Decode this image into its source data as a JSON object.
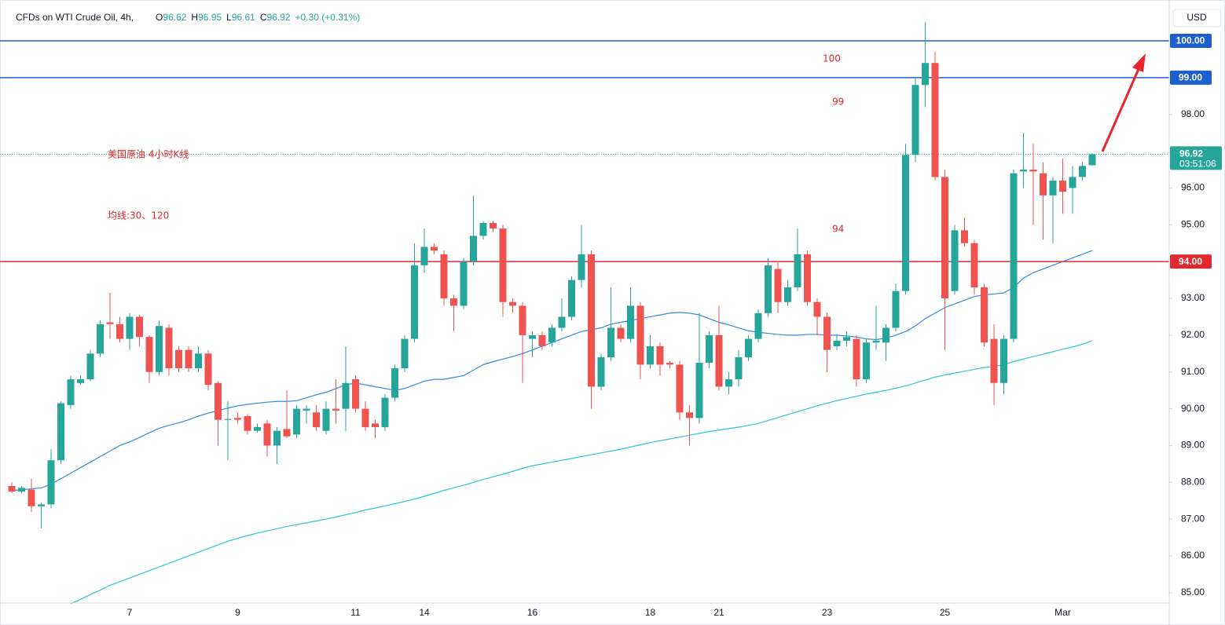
{
  "chart_data": {
    "type": "candlestick",
    "header": {
      "title": "CFDs on WTI Crude Oil, 4h,",
      "ohlc": [
        {
          "label": "O",
          "value": "96.62"
        },
        {
          "label": "H",
          "value": "96.95"
        },
        {
          "label": "L",
          "value": "96.61"
        },
        {
          "label": "C",
          "value": "96.92"
        }
      ],
      "change": "+0.30 (+0.31%)"
    },
    "currency": "USD",
    "annotations": [
      "美国原油 4小时K线",
      "均线:30、120",
      "100",
      "99",
      "94"
    ],
    "categories": [
      null,
      null,
      null,
      null,
      null,
      null,
      null,
      null,
      null,
      null,
      null,
      null,
      "7",
      null,
      null,
      null,
      null,
      null,
      null,
      null,
      null,
      null,
      null,
      "9",
      null,
      null,
      null,
      null,
      null,
      null,
      null,
      null,
      null,
      null,
      null,
      "11",
      null,
      null,
      null,
      null,
      null,
      null,
      "14",
      null,
      null,
      null,
      null,
      null,
      null,
      null,
      null,
      null,
      null,
      "16",
      null,
      null,
      null,
      null,
      null,
      null,
      null,
      null,
      null,
      null,
      null,
      "18",
      null,
      null,
      null,
      null,
      null,
      null,
      "21",
      null,
      null,
      null,
      null,
      null,
      null,
      null,
      null,
      null,
      null,
      "23",
      null,
      null,
      null,
      null,
      null,
      null,
      null,
      null,
      null,
      null,
      null,
      "25",
      null,
      null,
      null,
      null,
      null,
      null,
      null,
      null,
      null,
      null,
      null,
      "Mar",
      null,
      null,
      null
    ],
    "open": [
      87.9,
      87.75,
      87.8,
      87.35,
      87.4,
      88.6,
      90.1,
      90.7,
      90.8,
      91.5,
      92.35,
      92.3,
      91.9,
      92.5,
      91.95,
      91.0,
      92.2,
      91.6,
      91.6,
      91.1,
      91.5,
      90.7,
      89.7,
      89.75,
      89.8,
      89.4,
      89.6,
      89.0,
      89.45,
      89.3,
      89.95,
      89.9,
      89.4,
      90.0,
      90.0,
      90.8,
      90.0,
      89.6,
      89.5,
      90.3,
      91.1,
      91.9,
      93.9,
      94.4,
      94.2,
      93.0,
      92.8,
      94.0,
      94.7,
      95.05,
      94.9,
      92.9,
      92.8,
      91.9,
      92.0,
      91.8,
      92.2,
      92.5,
      93.5,
      94.2,
      90.6,
      91.4,
      92.2,
      91.9,
      92.8,
      91.2,
      91.7,
      91.25,
      91.2,
      89.9,
      89.75,
      91.25,
      92.0,
      90.6,
      90.8,
      91.4,
      91.9,
      92.6,
      93.8,
      92.9,
      93.3,
      94.2,
      92.9,
      92.5,
      91.7,
      91.85,
      91.9,
      90.8,
      91.8,
      91.8,
      92.2,
      93.2,
      96.9,
      98.8,
      99.4,
      96.3,
      93.2,
      94.85,
      94.5,
      93.3,
      91.9,
      90.7,
      91.9,
      96.45,
      96.5,
      96.4,
      95.8,
      96.2,
      96.0,
      96.3,
      96.62
    ],
    "high": [
      88.0,
      87.9,
      88.1,
      87.45,
      88.9,
      90.2,
      90.9,
      90.9,
      91.6,
      92.4,
      93.15,
      92.5,
      92.6,
      92.55,
      92.0,
      92.4,
      92.3,
      91.7,
      91.7,
      91.7,
      91.6,
      90.75,
      90.2,
      89.9,
      89.85,
      89.6,
      89.7,
      89.5,
      90.5,
      90.1,
      90.1,
      90.1,
      90.2,
      90.8,
      91.7,
      90.9,
      90.2,
      89.7,
      90.4,
      91.2,
      92.0,
      94.5,
      94.9,
      94.5,
      94.3,
      93.1,
      94.1,
      95.8,
      95.1,
      95.1,
      95.0,
      93.0,
      92.9,
      92.1,
      92.1,
      92.3,
      93.0,
      93.6,
      95.0,
      94.3,
      91.5,
      93.3,
      92.3,
      93.3,
      92.9,
      92.0,
      91.8,
      91.3,
      91.3,
      90.1,
      92.6,
      92.1,
      92.8,
      91.0,
      91.6,
      92.0,
      92.7,
      94.1,
      94.0,
      93.5,
      94.9,
      94.3,
      93.0,
      92.6,
      92.0,
      92.1,
      92.0,
      91.9,
      92.8,
      92.3,
      93.4,
      97.2,
      99.0,
      100.5,
      99.7,
      96.5,
      95.0,
      95.2,
      94.6,
      93.4,
      92.3,
      92.0,
      96.5,
      97.5,
      97.2,
      96.7,
      96.3,
      96.8,
      96.6,
      96.7,
      96.95
    ],
    "low": [
      87.7,
      87.7,
      87.2,
      86.75,
      87.3,
      88.5,
      90.0,
      90.65,
      90.75,
      91.4,
      91.9,
      91.8,
      91.6,
      91.7,
      90.7,
      90.9,
      90.9,
      91.0,
      91.0,
      91.0,
      90.5,
      89.0,
      88.6,
      89.6,
      89.3,
      89.35,
      88.7,
      88.5,
      89.2,
      89.2,
      89.6,
      89.4,
      89.3,
      89.6,
      89.4,
      89.9,
      89.4,
      89.2,
      89.4,
      90.2,
      91.0,
      91.8,
      93.7,
      94.2,
      92.8,
      92.1,
      92.7,
      93.9,
      94.6,
      94.8,
      92.5,
      92.6,
      90.7,
      91.4,
      91.6,
      91.7,
      92.1,
      92.4,
      93.3,
      90.0,
      90.5,
      91.3,
      91.8,
      91.8,
      90.8,
      91.1,
      90.9,
      91.1,
      89.7,
      89.0,
      89.6,
      91.1,
      90.5,
      90.4,
      90.6,
      91.3,
      91.8,
      92.5,
      92.6,
      92.8,
      93.2,
      92.8,
      92.0,
      91.0,
      91.6,
      91.7,
      90.6,
      90.7,
      91.6,
      91.3,
      92.1,
      93.1,
      96.7,
      98.2,
      96.2,
      91.6,
      93.1,
      94.4,
      93.1,
      91.7,
      90.1,
      90.4,
      91.8,
      96.0,
      95.0,
      94.6,
      94.5,
      95.3,
      95.3,
      96.2,
      96.61
    ],
    "close": [
      87.75,
      87.85,
      87.35,
      87.4,
      88.6,
      90.15,
      90.8,
      90.8,
      91.5,
      92.3,
      92.3,
      91.9,
      92.5,
      91.95,
      91.0,
      92.25,
      91.1,
      91.1,
      91.1,
      91.5,
      90.65,
      89.7,
      89.72,
      89.7,
      89.4,
      89.5,
      89.0,
      89.4,
      89.25,
      90.0,
      90.0,
      89.5,
      90.0,
      89.95,
      90.7,
      90.0,
      89.5,
      89.5,
      90.3,
      91.1,
      91.9,
      93.9,
      94.4,
      94.3,
      93.0,
      92.8,
      94.0,
      94.7,
      95.05,
      94.9,
      92.9,
      92.8,
      92.0,
      92.0,
      91.7,
      92.2,
      92.5,
      93.5,
      94.2,
      90.6,
      91.4,
      92.2,
      91.9,
      92.8,
      91.2,
      91.7,
      91.2,
      91.2,
      89.9,
      89.75,
      91.25,
      92.0,
      90.6,
      90.8,
      91.4,
      91.9,
      92.6,
      93.9,
      92.9,
      93.3,
      94.2,
      92.9,
      92.5,
      91.6,
      91.85,
      91.95,
      90.8,
      91.8,
      91.85,
      92.2,
      93.2,
      96.9,
      98.8,
      99.4,
      96.3,
      93.0,
      94.85,
      94.5,
      93.3,
      91.8,
      90.7,
      91.9,
      96.4,
      96.5,
      96.45,
      95.8,
      96.2,
      95.9,
      96.3,
      96.6,
      96.92
    ],
    "up_color": "#26a69a",
    "down_color": "#ef5350",
    "ma_lines": [
      {
        "color": "#2f8be0",
        "values": [
          87.78,
          87.8,
          87.82,
          87.85,
          87.95,
          88.1,
          88.25,
          88.4,
          88.55,
          88.7,
          88.85,
          89.0,
          89.1,
          89.22,
          89.35,
          89.47,
          89.55,
          89.62,
          89.7,
          89.8,
          89.88,
          89.95,
          90.02,
          90.08,
          90.12,
          90.15,
          90.18,
          90.2,
          90.2,
          90.22,
          90.3,
          90.38,
          90.45,
          90.55,
          90.65,
          90.7,
          90.65,
          90.6,
          90.55,
          90.5,
          90.55,
          90.65,
          90.75,
          90.8,
          90.8,
          90.85,
          90.9,
          91.05,
          91.2,
          91.28,
          91.35,
          91.42,
          91.5,
          91.6,
          91.7,
          91.8,
          91.9,
          92.0,
          92.1,
          92.15,
          92.2,
          92.3,
          92.35,
          92.4,
          92.45,
          92.5,
          92.55,
          92.6,
          92.62,
          92.6,
          92.55,
          92.45,
          92.35,
          92.28,
          92.2,
          92.12,
          92.08,
          92.05,
          92.02,
          92.0,
          92.0,
          92.02,
          92.02,
          92.0,
          92.0,
          91.98,
          91.95,
          91.9,
          91.88,
          91.92,
          92.0,
          92.1,
          92.25,
          92.45,
          92.6,
          92.75,
          92.85,
          92.95,
          93.05,
          93.1,
          93.12,
          93.15,
          93.3,
          93.55,
          93.7,
          93.8,
          93.9,
          94.0,
          94.1,
          94.2,
          94.3
        ]
      },
      {
        "color": "#2cc3d9",
        "values": [
          null,
          null,
          null,
          null,
          null,
          null,
          84.7,
          84.82,
          84.95,
          85.07,
          85.2,
          85.3,
          85.4,
          85.5,
          85.6,
          85.7,
          85.8,
          85.9,
          86.0,
          86.1,
          86.2,
          86.3,
          86.4,
          86.48,
          86.55,
          86.62,
          86.68,
          86.74,
          86.8,
          86.85,
          86.9,
          86.95,
          87.0,
          87.06,
          87.12,
          87.18,
          87.25,
          87.3,
          87.36,
          87.42,
          87.48,
          87.55,
          87.62,
          87.7,
          87.78,
          87.85,
          87.92,
          88.0,
          88.08,
          88.15,
          88.22,
          88.3,
          88.38,
          88.45,
          88.5,
          88.55,
          88.6,
          88.65,
          88.7,
          88.75,
          88.8,
          88.85,
          88.9,
          88.96,
          89.02,
          89.08,
          89.13,
          89.18,
          89.23,
          89.28,
          89.33,
          89.38,
          89.42,
          89.46,
          89.5,
          89.55,
          89.6,
          89.68,
          89.76,
          89.84,
          89.92,
          90.0,
          90.08,
          90.15,
          90.22,
          90.28,
          90.34,
          90.4,
          90.45,
          90.5,
          90.56,
          90.62,
          90.7,
          90.78,
          90.86,
          90.92,
          90.97,
          91.02,
          91.07,
          91.12,
          91.15,
          91.2,
          91.28,
          91.35,
          91.42,
          91.48,
          91.55,
          91.62,
          91.68,
          91.75,
          91.85
        ]
      }
    ],
    "price_lines": [
      {
        "value": 100,
        "label": "100.00",
        "color": "#1e5fcf"
      },
      {
        "value": 99,
        "label": "99.00",
        "color": "#1e5fcf"
      },
      {
        "value": 94,
        "label": "94.00",
        "color": "#e0282e"
      }
    ],
    "current_price": {
      "value": 96.92,
      "label": "96.92",
      "countdown": "03:51:06",
      "color": "#26a69a"
    },
    "ylim": [
      84.72,
      100.94
    ],
    "yticks": [
      {
        "value": 85,
        "label": "85.00"
      },
      {
        "value": 86,
        "label": "86.00"
      },
      {
        "value": 87,
        "label": "87.00"
      },
      {
        "value": 88,
        "label": "88.00"
      },
      {
        "value": 89,
        "label": "89.00"
      },
      {
        "value": 90,
        "label": "90.00"
      },
      {
        "value": 91,
        "label": "91.00"
      },
      {
        "value": 92,
        "label": "92.00"
      },
      {
        "value": 93,
        "label": "93.00"
      },
      {
        "value": 94,
        "label": "94.00"
      },
      {
        "value": 95,
        "label": "95.00"
      },
      {
        "value": 96,
        "label": "96.00"
      },
      {
        "value": 97,
        "label": "97.00"
      },
      {
        "value": 98,
        "label": "98.00"
      }
    ],
    "grid": false
  }
}
